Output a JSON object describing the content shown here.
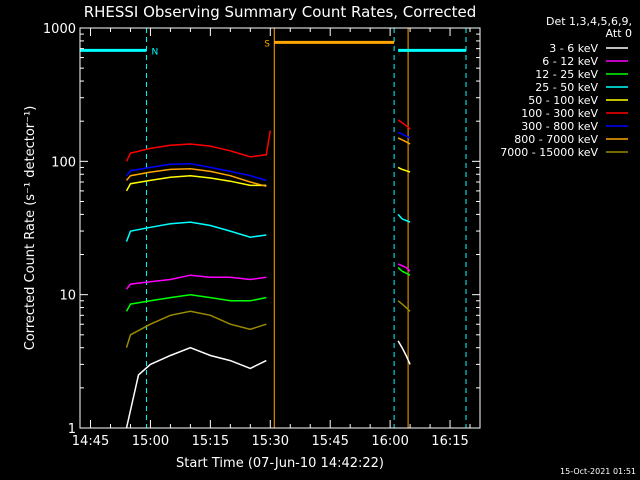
{
  "chart_data": {
    "type": "line",
    "title": "RHESSI Observing Summary Count Rates, Corrected",
    "xlabel": "Start Time (07-Jun-10 14:42:22)",
    "ylabel": "Corrected Count Rate (s⁻¹ detector⁻¹)",
    "y_scale": "log",
    "ylim": [
      1,
      1000
    ],
    "xlim": [
      "14:42:22",
      "16:22:30"
    ],
    "x_ticks": [
      "14:45",
      "15:00",
      "15:15",
      "15:30",
      "15:45",
      "16:00",
      "16:15"
    ],
    "y_ticks": [
      "1",
      "10",
      "100",
      "1000"
    ],
    "legend_header": [
      "Det 1,3,4,5,6,9,",
      "Att 0"
    ],
    "legend_position": "top-right, outside plot",
    "timestamp": "15-Oct-2021 01:51",
    "series": [
      {
        "name": "3 - 6 keV",
        "color": "#ffffff",
        "segments": [
          {
            "x": [
              "14:54:00",
              "14:57:00",
              "15:00:00",
              "15:05:00",
              "15:10:00",
              "15:15:00",
              "15:20:00",
              "15:25:00",
              "15:29:00"
            ],
            "y": [
              1,
              2.5,
              3,
              3.5,
              4,
              3.5,
              3.2,
              2.8,
              3.2
            ]
          },
          {
            "x": [
              "16:02:00",
              "16:03:00",
              "16:04:00",
              "16:05:00"
            ],
            "y": [
              4.5,
              4,
              3.5,
              3
            ]
          }
        ]
      },
      {
        "name": "6 - 12 keV",
        "color": "#ff00ff",
        "segments": [
          {
            "x": [
              "14:54:00",
              "14:55:00",
              "15:00:00",
              "15:05:00",
              "15:10:00",
              "15:15:00",
              "15:20:00",
              "15:25:00",
              "15:29:00"
            ],
            "y": [
              11,
              12,
              12.5,
              13,
              14,
              13.5,
              13.5,
              13,
              13.5
            ]
          },
          {
            "x": [
              "16:02:00",
              "16:03:00",
              "16:04:00",
              "16:05:00"
            ],
            "y": [
              17,
              16.5,
              16,
              15
            ]
          }
        ]
      },
      {
        "name": "12 - 25 keV",
        "color": "#00ff00",
        "segments": [
          {
            "x": [
              "14:54:00",
              "14:55:00",
              "15:00:00",
              "15:05:00",
              "15:10:00",
              "15:15:00",
              "15:20:00",
              "15:25:00",
              "15:29:00"
            ],
            "y": [
              7.5,
              8.5,
              9,
              9.5,
              10,
              9.5,
              9,
              9,
              9.5
            ]
          },
          {
            "x": [
              "16:02:00",
              "16:03:00",
              "16:04:00",
              "16:05:00"
            ],
            "y": [
              16,
              15,
              14.5,
              14
            ]
          }
        ]
      },
      {
        "name": "25 - 50 keV",
        "color": "#00ffff",
        "segments": [
          {
            "x": [
              "14:54:00",
              "14:55:00",
              "15:00:00",
              "15:05:00",
              "15:10:00",
              "15:15:00",
              "15:20:00",
              "15:25:00",
              "15:29:00"
            ],
            "y": [
              25,
              30,
              32,
              34,
              35,
              33,
              30,
              27,
              28
            ]
          },
          {
            "x": [
              "16:02:00",
              "16:03:00",
              "16:04:00",
              "16:05:00"
            ],
            "y": [
              40,
              37,
              36,
              35
            ]
          }
        ]
      },
      {
        "name": "50 - 100 keV",
        "color": "#ffff00",
        "segments": [
          {
            "x": [
              "14:54:00",
              "14:55:00",
              "15:00:00",
              "15:05:00",
              "15:10:00",
              "15:15:00",
              "15:20:00",
              "15:25:00",
              "15:29:00"
            ],
            "y": [
              60,
              68,
              72,
              76,
              78,
              75,
              71,
              66,
              66
            ]
          },
          {
            "x": [
              "16:02:00",
              "16:03:00",
              "16:04:00",
              "16:05:00"
            ],
            "y": [
              90,
              87,
              85,
              83
            ]
          }
        ]
      },
      {
        "name": "100 - 300 keV",
        "color": "#ff0000",
        "segments": [
          {
            "x": [
              "14:54:00",
              "14:55:00",
              "15:00:00",
              "15:05:00",
              "15:10:00",
              "15:15:00",
              "15:20:00",
              "15:25:00",
              "15:29:00",
              "15:30:00"
            ],
            "y": [
              100,
              115,
              125,
              132,
              135,
              130,
              120,
              108,
              112,
              170
            ]
          },
          {
            "x": [
              "16:02:00",
              "16:03:00",
              "16:04:00",
              "16:05:00"
            ],
            "y": [
              205,
              195,
              185,
              175
            ]
          }
        ]
      },
      {
        "name": "300 - 800 keV",
        "color": "#0000ff",
        "segments": [
          {
            "x": [
              "14:54:00",
              "14:55:00",
              "15:00:00",
              "15:05:00",
              "15:10:00",
              "15:15:00",
              "15:20:00",
              "15:25:00",
              "15:29:00"
            ],
            "y": [
              78,
              85,
              90,
              95,
              96,
              90,
              84,
              78,
              72
            ]
          },
          {
            "x": [
              "16:02:00",
              "16:03:00",
              "16:04:00",
              "16:05:00"
            ],
            "y": [
              165,
              160,
              155,
              150
            ]
          }
        ]
      },
      {
        "name": "800 - 7000 keV",
        "color": "#ffa500",
        "segments": [
          {
            "x": [
              "14:54:00",
              "14:55:00",
              "15:00:00",
              "15:05:00",
              "15:10:00",
              "15:15:00",
              "15:20:00",
              "15:25:00",
              "15:29:00"
            ],
            "y": [
              72,
              78,
              83,
              87,
              88,
              84,
              78,
              70,
              65
            ]
          },
          {
            "x": [
              "16:02:00",
              "16:03:00",
              "16:04:00",
              "16:05:00"
            ],
            "y": [
              150,
              145,
              140,
              135
            ]
          }
        ]
      },
      {
        "name": "7000 - 15000 keV",
        "color": "#9a8c00",
        "segments": [
          {
            "x": [
              "14:54:00",
              "14:55:00",
              "15:00:00",
              "15:05:00",
              "15:10:00",
              "15:15:00",
              "15:20:00",
              "15:25:00",
              "15:29:00"
            ],
            "y": [
              4,
              5,
              6,
              7,
              7.5,
              7,
              6,
              5.5,
              6
            ]
          },
          {
            "x": [
              "16:02:00",
              "16:03:00",
              "16:04:00",
              "16:05:00"
            ],
            "y": [
              9,
              8.5,
              8,
              7.5
            ]
          }
        ]
      }
    ],
    "flags": [
      {
        "label": "N",
        "color": "#00ffff",
        "segments": [
          [
            "14:42:22",
            "14:59:00"
          ],
          [
            "16:02:00",
            "16:19:00"
          ]
        ],
        "y": 680
      },
      {
        "label": "S",
        "color": "#ffa500",
        "segments": [
          [
            "15:31:00",
            "16:01:00"
          ]
        ],
        "y": 780
      }
    ],
    "markers": [
      {
        "x": "14:59:00",
        "color": "#00ffff",
        "style": "dashed"
      },
      {
        "x": "16:01:00",
        "color": "#00ffff",
        "style": "dashed"
      },
      {
        "x": "16:19:00",
        "color": "#00ffff",
        "style": "dashed"
      },
      {
        "x": "15:31:00",
        "color": "#ffa500",
        "style": "solid"
      },
      {
        "x": "16:04:30",
        "color": "#ffa500",
        "style": "solid"
      }
    ]
  }
}
